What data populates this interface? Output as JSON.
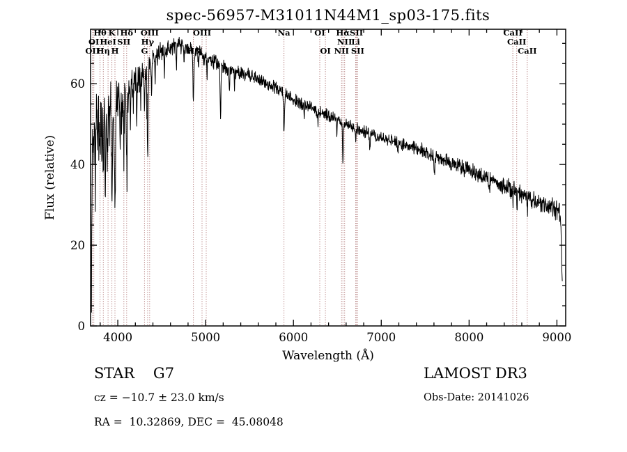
{
  "footer": {
    "object_type": "STAR    G7",
    "cz": "cz = −10.7 ± 23.0 km/s",
    "ra_dec": "RA =  10.32869, DEC =  45.08048",
    "survey": "LAMOST DR3",
    "obs_date": "Obs-Date: 20141026"
  },
  "chart_data": {
    "type": "line",
    "title": "spec-56957-M31011N44M1_sp03-175.fits",
    "xlabel": "Wavelength (Å)",
    "ylabel": "Flux (relative)",
    "xlim": [
      3690,
      9100
    ],
    "ylim": [
      0,
      73.5
    ],
    "x_ticks": [
      4000,
      5000,
      6000,
      7000,
      8000,
      9000
    ],
    "x_tick_labels": [
      "4000",
      "5000",
      "6000",
      "7000",
      "8000",
      "9000"
    ],
    "y_ticks": [
      0,
      20,
      40,
      60
    ],
    "y_tick_labels": [
      "0",
      "20",
      "40",
      "60"
    ],
    "x_minor_step": 200,
    "y_minor_step": 5,
    "grid": false,
    "line_color": "#000000",
    "marker_line_color": "#9b5252",
    "marker_label_color": "#5f3434",
    "line_markers": [
      {
        "label": "Hθ",
        "wavelength": 3798,
        "row": 1
      },
      {
        "label": "K",
        "wavelength": 3933,
        "row": 1
      },
      {
        "label": "Hδ",
        "wavelength": 4101,
        "row": 1
      },
      {
        "label": "OIII",
        "wavelength": 4363,
        "row": 1
      },
      {
        "label": "OIII",
        "wavelength": 4959,
        "row": 1
      },
      {
        "label": "",
        "wavelength": 5007,
        "row": 1
      },
      {
        "label": "Na",
        "wavelength": 5892,
        "row": 1
      },
      {
        "label": "OI",
        "wavelength": 6300,
        "row": 1
      },
      {
        "label": "Hα",
        "wavelength": 6563,
        "row": 1
      },
      {
        "label": "SII",
        "wavelength": 6717,
        "row": 1
      },
      {
        "label": "CaII",
        "wavelength": 8498,
        "row": 1
      },
      {
        "label": "OI",
        "wavelength": 3727,
        "row": 2
      },
      {
        "label": "HeI",
        "wavelength": 3889,
        "row": 2
      },
      {
        "label": "SII",
        "wavelength": 4069,
        "row": 2
      },
      {
        "label": "Hγ",
        "wavelength": 4340,
        "row": 2
      },
      {
        "label": "NII",
        "wavelength": 6583,
        "row": 2
      },
      {
        "label": "Li",
        "wavelength": 6708,
        "row": 2
      },
      {
        "label": "CaII",
        "wavelength": 8542,
        "row": 2
      },
      {
        "label": "OII",
        "wavelength": 3712,
        "row": 3
      },
      {
        "label": "Hη",
        "wavelength": 3835,
        "row": 3
      },
      {
        "label": "H",
        "wavelength": 3968,
        "row": 3
      },
      {
        "label": "G",
        "wavelength": 4304,
        "row": 3
      },
      {
        "label": "Hβ",
        "wavelength": 4861,
        "row": 3
      },
      {
        "label": "OI",
        "wavelength": 6364,
        "row": 3
      },
      {
        "label": "NII",
        "wavelength": 6548,
        "row": 3
      },
      {
        "label": "SII",
        "wavelength": 6731,
        "row": 3
      },
      {
        "label": "CaII",
        "wavelength": 8662,
        "row": 3
      }
    ],
    "spectrum_start": 3700,
    "spectrum_end": 9062,
    "sample_step_angstrom": 3,
    "noise_seed": 11,
    "continuum": [
      [
        3700,
        3
      ],
      [
        3705,
        30
      ],
      [
        3712,
        48
      ],
      [
        3730,
        50
      ],
      [
        3760,
        53
      ],
      [
        3800,
        53
      ],
      [
        3850,
        53
      ],
      [
        3900,
        55
      ],
      [
        3950,
        53
      ],
      [
        4000,
        57
      ],
      [
        4050,
        57
      ],
      [
        4100,
        58
      ],
      [
        4150,
        60
      ],
      [
        4200,
        61
      ],
      [
        4250,
        62
      ],
      [
        4300,
        63
      ],
      [
        4350,
        64
      ],
      [
        4400,
        66
      ],
      [
        4500,
        68
      ],
      [
        4600,
        69
      ],
      [
        4700,
        69.5
      ],
      [
        4800,
        68.5
      ],
      [
        4900,
        68
      ],
      [
        5000,
        66.5
      ],
      [
        5100,
        65.5
      ],
      [
        5200,
        64
      ],
      [
        5300,
        63.5
      ],
      [
        5400,
        62.5
      ],
      [
        5500,
        62
      ],
      [
        5600,
        61
      ],
      [
        5700,
        60
      ],
      [
        5800,
        59
      ],
      [
        5900,
        57.5
      ],
      [
        6000,
        56
      ],
      [
        6100,
        55
      ],
      [
        6200,
        54
      ],
      [
        6300,
        53
      ],
      [
        6400,
        52
      ],
      [
        6500,
        51
      ],
      [
        6600,
        50
      ],
      [
        6700,
        49
      ],
      [
        6800,
        48.2
      ],
      [
        6900,
        47.2
      ],
      [
        7000,
        46.5
      ],
      [
        7100,
        46
      ],
      [
        7200,
        45.2
      ],
      [
        7300,
        44.6
      ],
      [
        7400,
        44
      ],
      [
        7500,
        43.2
      ],
      [
        7600,
        42.3
      ],
      [
        7700,
        41.3
      ],
      [
        7800,
        40.3
      ],
      [
        7900,
        39.3
      ],
      [
        8000,
        38.5
      ],
      [
        8100,
        37.5
      ],
      [
        8200,
        36.6
      ],
      [
        8300,
        35.6
      ],
      [
        8400,
        34.6
      ],
      [
        8500,
        33.6
      ],
      [
        8600,
        32.6
      ],
      [
        8700,
        31.6
      ],
      [
        8800,
        30.6
      ],
      [
        8900,
        29.6
      ],
      [
        9000,
        28.6
      ],
      [
        9030,
        28
      ],
      [
        9045,
        26
      ],
      [
        9055,
        16
      ],
      [
        9062,
        8
      ]
    ],
    "absorption_lines": [
      [
        3727,
        6,
        4
      ],
      [
        3745,
        16,
        4
      ],
      [
        3770,
        10,
        3
      ],
      [
        3798,
        12,
        4
      ],
      [
        3820,
        12,
        3
      ],
      [
        3835,
        14,
        4
      ],
      [
        3858,
        20,
        4
      ],
      [
        3880,
        16,
        4
      ],
      [
        3905,
        8,
        3
      ],
      [
        3933,
        24,
        5
      ],
      [
        3968,
        26,
        5
      ],
      [
        4026,
        10,
        4
      ],
      [
        4045,
        8,
        3
      ],
      [
        4069,
        8,
        3
      ],
      [
        4101,
        17,
        5
      ],
      [
        4145,
        9,
        3
      ],
      [
        4175,
        7,
        3
      ],
      [
        4215,
        9,
        3
      ],
      [
        4260,
        7,
        3
      ],
      [
        4304,
        9,
        5
      ],
      [
        4340,
        22,
        5
      ],
      [
        4385,
        9,
        3
      ],
      [
        4425,
        6,
        3
      ],
      [
        4530,
        5,
        3
      ],
      [
        4668,
        5,
        3
      ],
      [
        4755,
        4,
        3
      ],
      [
        4861,
        13,
        5
      ],
      [
        4920,
        5,
        3
      ],
      [
        5015,
        5,
        3
      ],
      [
        5170,
        12,
        5
      ],
      [
        5270,
        6,
        4
      ],
      [
        5330,
        4,
        3
      ],
      [
        5892,
        10,
        5
      ],
      [
        6122,
        4,
        3
      ],
      [
        6280,
        3,
        3
      ],
      [
        6495,
        4,
        3
      ],
      [
        6563,
        11,
        4
      ],
      [
        6710,
        3,
        3
      ],
      [
        6870,
        4,
        4
      ],
      [
        7190,
        3,
        4
      ],
      [
        7605,
        5,
        5
      ],
      [
        8230,
        3,
        4
      ],
      [
        8500,
        3,
        3
      ],
      [
        8545,
        4,
        3
      ],
      [
        8665,
        4,
        3
      ]
    ],
    "noise_profile": [
      [
        3700,
        4.5
      ],
      [
        3950,
        4.0
      ],
      [
        4100,
        2.6
      ],
      [
        4400,
        1.6
      ],
      [
        4800,
        1.3
      ],
      [
        5400,
        1.1
      ],
      [
        6000,
        1.0
      ],
      [
        6800,
        1.0
      ],
      [
        7600,
        1.2
      ],
      [
        8400,
        1.4
      ],
      [
        9000,
        1.5
      ]
    ]
  }
}
